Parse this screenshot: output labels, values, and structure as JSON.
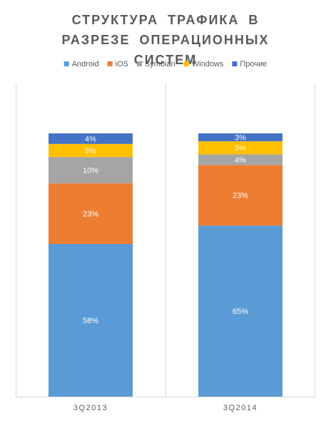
{
  "chart_data": {
    "type": "stacked-bar-100",
    "title": "СТРУКТУРА ТРАФИКА В РАЗРЕЗЕ ОПЕРАЦИОННЫХ СИСТЕМ",
    "categories": [
      "3Q2013",
      "3Q2014"
    ],
    "legend": "top",
    "series": [
      {
        "name": "Android",
        "color": "#5b9bd5",
        "values": [
          58,
          65
        ],
        "value_labels": [
          "58%",
          "65%"
        ]
      },
      {
        "name": "iOS",
        "color": "#ed7d31",
        "values": [
          23,
          23
        ],
        "value_labels": [
          "23%",
          "23%"
        ]
      },
      {
        "name": "Symbian",
        "color": "#a5a5a5",
        "values": [
          10,
          4
        ],
        "value_labels": [
          "10%",
          "4%"
        ]
      },
      {
        "name": "Windows",
        "color": "#ffc000",
        "values": [
          5,
          5
        ],
        "value_labels": [
          "5%",
          "5%"
        ]
      },
      {
        "name": "Прочие",
        "color": "#4472c4",
        "values": [
          4,
          3
        ],
        "value_labels": [
          "4%",
          "3%"
        ]
      }
    ]
  }
}
